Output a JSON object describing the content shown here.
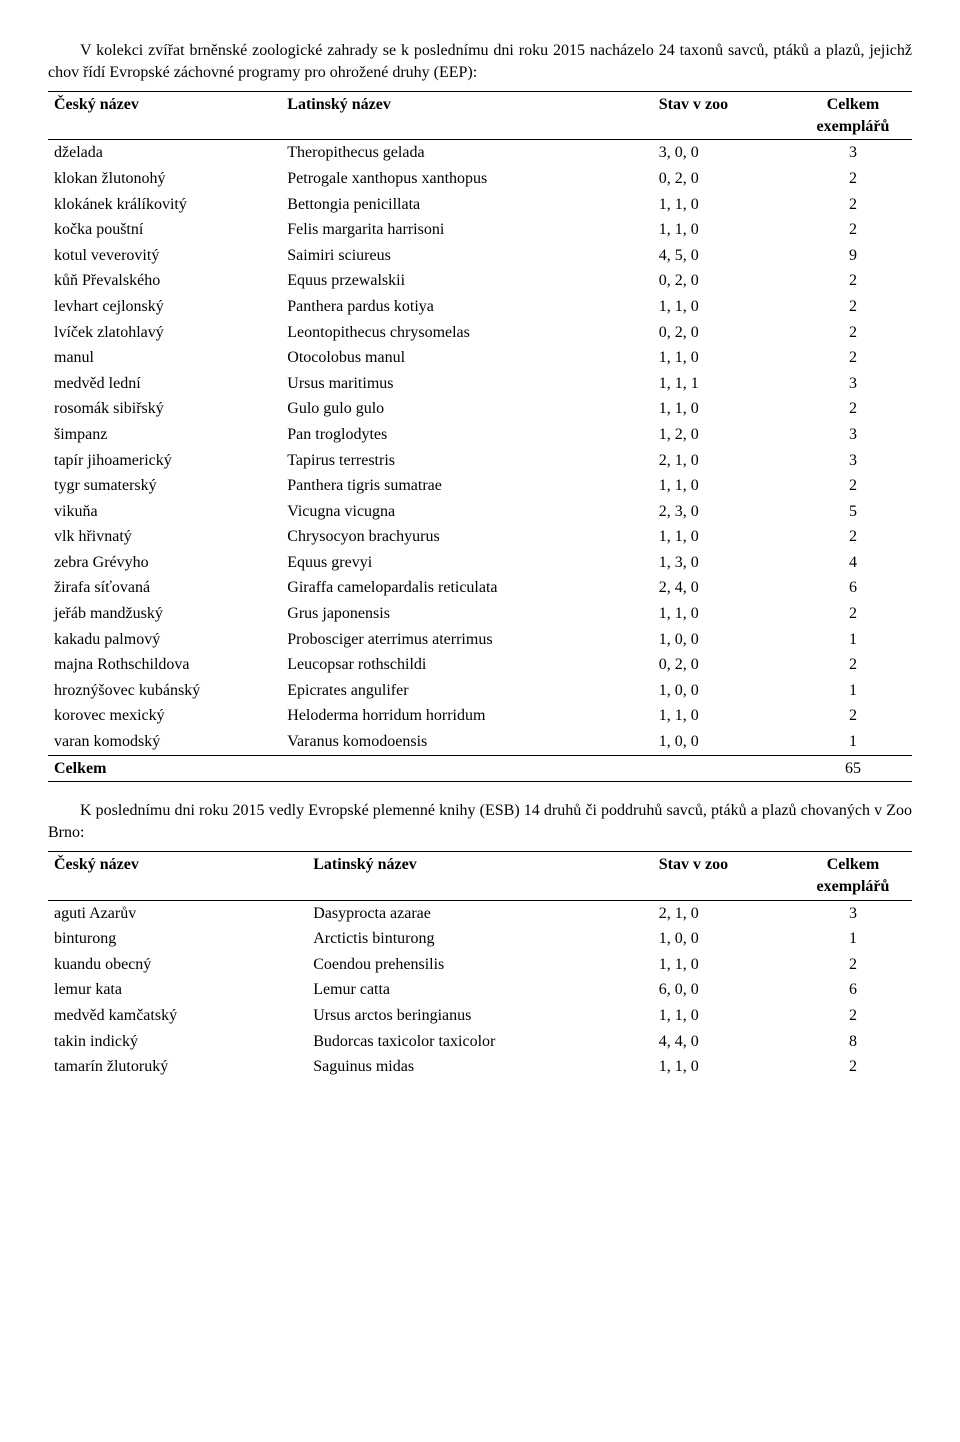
{
  "intro1": "V kolekci zvířat brněnské zoologické zahrady se k poslednímu dni roku 2015 nacházelo 24 taxonů savců, ptáků a plazů, jejichž chov řídí Evropské záchovné programy pro ohrožené druhy (EEP):",
  "intro2": "K poslednímu dni roku 2015 vedly Evropské plemenné knihy (ESB) 14 druhů či poddruhů savců, ptáků a plazů chovaných v Zoo Brno:",
  "headers": {
    "czech": "Český název",
    "latin": "Latinský název",
    "stav": "Stav v zoo",
    "celkem_line1": "Celkem",
    "celkem_line2": "exemplářů"
  },
  "table1": {
    "rows": [
      {
        "cz": "dželada",
        "la": "Theropithecus gelada",
        "stav": "3, 0, 0",
        "tot": "3"
      },
      {
        "cz": "klokan žlutonohý",
        "la": "Petrogale xanthopus xanthopus",
        "stav": "0, 2, 0",
        "tot": "2"
      },
      {
        "cz": "klokánek králíkovitý",
        "la": "Bettongia penicillata",
        "stav": "1, 1, 0",
        "tot": "2"
      },
      {
        "cz": "kočka pouštní",
        "la": "Felis margarita harrisoni",
        "stav": "1, 1, 0",
        "tot": "2"
      },
      {
        "cz": "kotul veverovitý",
        "la": "Saimiri sciureus",
        "stav": "4, 5, 0",
        "tot": "9"
      },
      {
        "cz": "kůň Převalského",
        "la": "Equus przewalskii",
        "stav": "0, 2, 0",
        "tot": "2"
      },
      {
        "cz": "levhart cejlonský",
        "la": "Panthera pardus kotiya",
        "stav": "1, 1, 0",
        "tot": "2"
      },
      {
        "cz": "lvíček zlatohlavý",
        "la": "Leontopithecus chrysomelas",
        "stav": "0, 2, 0",
        "tot": "2"
      },
      {
        "cz": "manul",
        "la": "Otocolobus manul",
        "stav": "1, 1, 0",
        "tot": "2"
      },
      {
        "cz": "medvěd lední",
        "la": "Ursus maritimus",
        "stav": "1, 1, 1",
        "tot": "3"
      },
      {
        "cz": "rosomák sibiřský",
        "la": "Gulo gulo gulo",
        "stav": "1, 1, 0",
        "tot": "2"
      },
      {
        "cz": "šimpanz",
        "la": "Pan troglodytes",
        "stav": "1, 2, 0",
        "tot": "3"
      },
      {
        "cz": "tapír jihoamerický",
        "la": "Tapirus terrestris",
        "stav": "2, 1, 0",
        "tot": "3"
      },
      {
        "cz": "tygr sumaterský",
        "la": "Panthera tigris sumatrae",
        "stav": "1, 1, 0",
        "tot": "2"
      },
      {
        "cz": "vikuňa",
        "la": "Vicugna vicugna",
        "stav": "2, 3, 0",
        "tot": "5"
      },
      {
        "cz": "vlk hřivnatý",
        "la": "Chrysocyon brachyurus",
        "stav": "1, 1, 0",
        "tot": "2"
      },
      {
        "cz": "zebra Grévyho",
        "la": "Equus grevyi",
        "stav": "1, 3, 0",
        "tot": "4"
      },
      {
        "cz": "žirafa síťovaná",
        "la": "Giraffa camelopardalis reticulata",
        "stav": "2, 4, 0",
        "tot": "6"
      },
      {
        "cz": "jeřáb mandžuský",
        "la": "Grus japonensis",
        "stav": "1, 1, 0",
        "tot": "2"
      },
      {
        "cz": "kakadu palmový",
        "la": "Probosciger aterrimus aterrimus",
        "stav": "1, 0, 0",
        "tot": "1"
      },
      {
        "cz": "majna Rothschildova",
        "la": "Leucopsar rothschildi",
        "stav": "0, 2, 0",
        "tot": "2"
      },
      {
        "cz": "hroznýšovec kubánský",
        "la": "Epicrates angulifer",
        "stav": "1, 0, 0",
        "tot": "1"
      },
      {
        "cz": "korovec mexický",
        "la": "Heloderma horridum horridum",
        "stav": "1, 1, 0",
        "tot": "2"
      },
      {
        "cz": "varan komodský",
        "la": "Varanus komodoensis",
        "stav": "1, 0, 0",
        "tot": "1"
      }
    ],
    "total_label": "Celkem",
    "total_value": "65"
  },
  "table2": {
    "rows": [
      {
        "cz": "aguti Azarův",
        "la": "Dasyprocta azarae",
        "stav": "2, 1, 0",
        "tot": "3"
      },
      {
        "cz": "binturong",
        "la": "Arctictis binturong",
        "stav": "1, 0, 0",
        "tot": "1"
      },
      {
        "cz": "kuandu obecný",
        "la": "Coendou prehensilis",
        "stav": "1, 1, 0",
        "tot": "2"
      },
      {
        "cz": "lemur kata",
        "la": "Lemur catta",
        "stav": "6, 0, 0",
        "tot": "6"
      },
      {
        "cz": "medvěd kamčatský",
        "la": "Ursus arctos beringianus",
        "stav": "1, 1, 0",
        "tot": "2"
      },
      {
        "cz": "takin indický",
        "la": "Budorcas taxicolor taxicolor",
        "stav": "4, 4, 0",
        "tot": "8"
      },
      {
        "cz": "tamarín žlutoruký",
        "la": "Saguinus midas",
        "stav": "1, 1, 0",
        "tot": "2"
      }
    ]
  }
}
